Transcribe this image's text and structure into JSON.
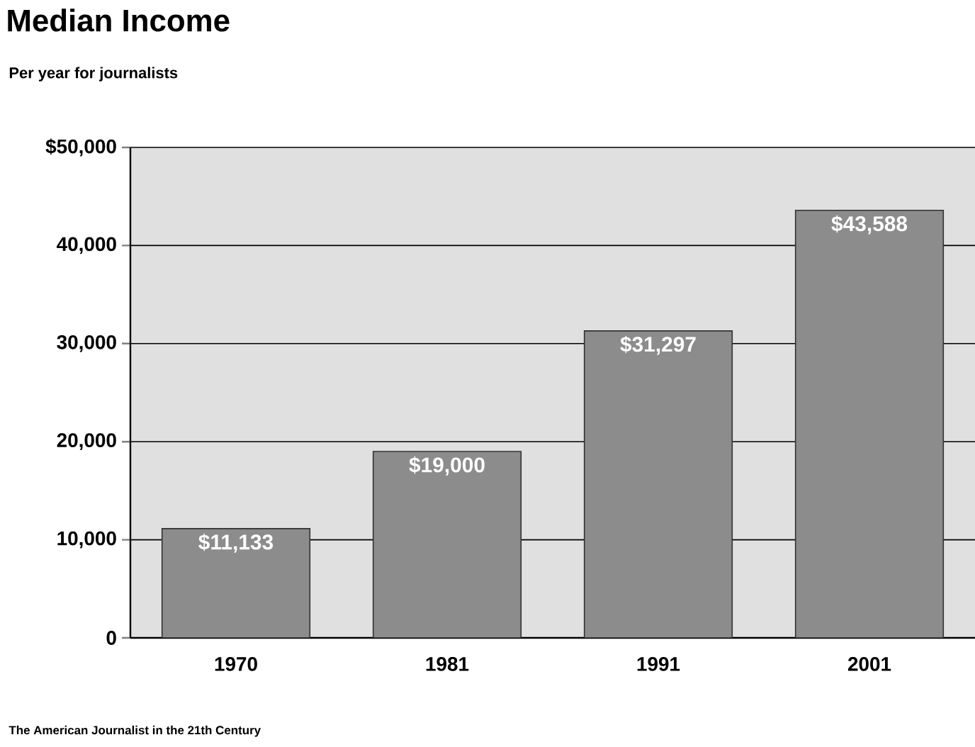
{
  "chart_data": {
    "type": "bar",
    "title": "Median Income",
    "subtitle": "Per year for journalists",
    "categories": [
      "1970",
      "1981",
      "1991",
      "2001"
    ],
    "values": [
      11133,
      19000,
      31297,
      43588
    ],
    "value_labels": [
      "$11,133",
      "$19,000",
      "$31,297",
      "$43,588"
    ],
    "color": "#8c8c8c",
    "ylim": [
      0,
      50000
    ],
    "yticks": [
      {
        "value": 0,
        "label": "0"
      },
      {
        "value": 10000,
        "label": "10,000"
      },
      {
        "value": 20000,
        "label": "20,000"
      },
      {
        "value": 30000,
        "label": "30,000"
      },
      {
        "value": 40000,
        "label": "40,000"
      },
      {
        "value": 50000,
        "label": "$50,000"
      }
    ],
    "grid": "y",
    "annotations": [
      "The American Journalist in the 21th Century"
    ]
  }
}
